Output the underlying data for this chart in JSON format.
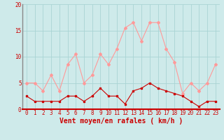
{
  "hours": [
    0,
    1,
    2,
    3,
    4,
    5,
    6,
    7,
    8,
    9,
    10,
    11,
    12,
    13,
    14,
    15,
    16,
    17,
    18,
    19,
    20,
    21,
    22,
    23
  ],
  "vent_moyen": [
    2.5,
    1.5,
    1.5,
    1.5,
    1.5,
    2.5,
    2.5,
    1.5,
    2.5,
    4.0,
    2.5,
    2.5,
    1.0,
    3.5,
    4.0,
    5.0,
    4.0,
    3.5,
    3.0,
    2.5,
    1.5,
    0.5,
    1.5,
    1.5
  ],
  "rafales": [
    5.0,
    5.0,
    3.5,
    6.5,
    3.5,
    8.5,
    10.5,
    5.0,
    6.5,
    10.5,
    8.5,
    11.5,
    15.5,
    16.5,
    13.0,
    16.5,
    16.5,
    11.5,
    9.0,
    3.0,
    5.0,
    3.5,
    5.0,
    8.5
  ],
  "xlabel": "Vent moyen/en rafales ( km/h )",
  "ylim": [
    0,
    20
  ],
  "xlim": [
    -0.5,
    23.5
  ],
  "yticks": [
    0,
    5,
    10,
    15,
    20
  ],
  "bg_color": "#ceeaea",
  "grid_color": "#aad4d4",
  "line_color_moyen": "#cc0000",
  "line_color_rafales": "#ff9999",
  "marker_moyen": "s",
  "marker_rafales": "D",
  "marker_size_moyen": 2.0,
  "marker_size_rafales": 2.0,
  "tick_fontsize": 5.5,
  "xlabel_fontsize": 7.0
}
